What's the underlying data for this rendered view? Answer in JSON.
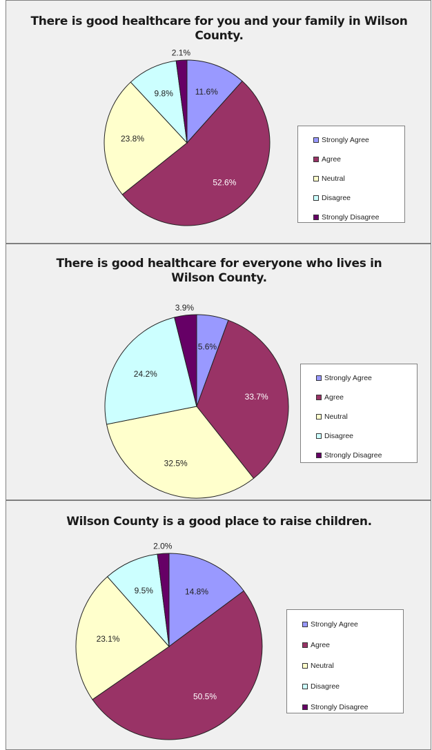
{
  "chart_data": [
    {
      "type": "pie",
      "title": "There is good healthcare for you and your family in Wilson County.",
      "title_lines": [
        "There is good healthcare for you and your family in Wilson",
        "County."
      ],
      "categories": [
        "Strongly Agree",
        "Agree",
        "Neutral",
        "Disagree",
        "Strongly Disagree"
      ],
      "values": [
        11.6,
        52.6,
        23.8,
        9.8,
        2.1
      ],
      "labels": [
        "11.6%",
        "52.6%",
        "23.8%",
        "9.8%",
        "2.1%"
      ],
      "colors": [
        "#9999ff",
        "#993366",
        "#ffffcc",
        "#ccffff",
        "#660066"
      ],
      "legend_position": "right"
    },
    {
      "type": "pie",
      "title": "There is good healthcare for everyone who lives in Wilson County.",
      "title_lines": [
        "There is good healthcare for everyone who lives in",
        "Wilson County."
      ],
      "categories": [
        "Strongly Agree",
        "Agree",
        "Neutral",
        "Disagree",
        "Strongly Disagree"
      ],
      "values": [
        5.6,
        33.7,
        32.5,
        24.2,
        3.9
      ],
      "labels": [
        "5.6%",
        "33.7%",
        "32.5%",
        "24.2%",
        "3.9%"
      ],
      "colors": [
        "#9999ff",
        "#993366",
        "#ffffcc",
        "#ccffff",
        "#660066"
      ],
      "legend_position": "right"
    },
    {
      "type": "pie",
      "title": "Wilson County is a good place to raise children.",
      "title_lines": [
        "Wilson County is a good place to raise children."
      ],
      "categories": [
        "Strongly Agree",
        "Agree",
        "Neutral",
        "Disagree",
        "Strongly Disagree"
      ],
      "values": [
        14.8,
        50.5,
        23.1,
        9.5,
        2.0
      ],
      "labels": [
        "14.8%",
        "50.5%",
        "23.1%",
        "9.5%",
        "2.0%"
      ],
      "colors": [
        "#9999ff",
        "#993366",
        "#ffffcc",
        "#ccffff",
        "#660066"
      ],
      "legend_position": "right"
    }
  ]
}
